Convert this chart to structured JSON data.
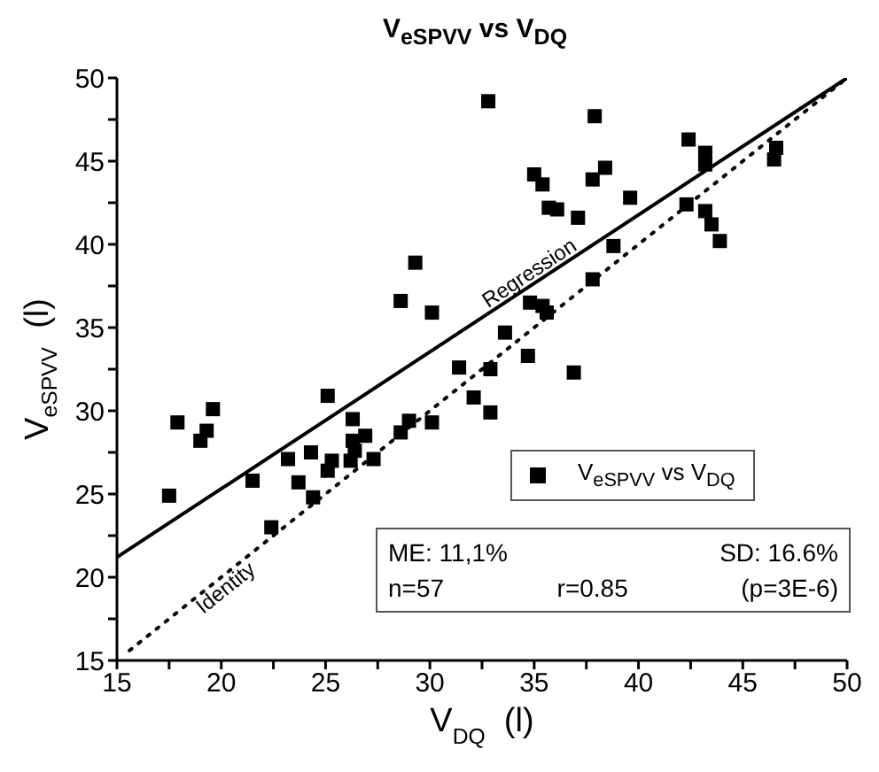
{
  "chart_data": {
    "type": "scatter",
    "title": "V$_{eSPVV}$ vs V$_{DQ}$",
    "xlabel": "V$_{DQ}$  (l)",
    "ylabel": "V$_{eSPVV}$  (l)",
    "xlim": [
      15,
      50
    ],
    "ylim": [
      15,
      50
    ],
    "xticks": [
      15,
      {
        "value": 17.5,
        "label": null
      },
      20,
      {
        "value": 22.5,
        "label": null
      },
      25,
      {
        "value": 27.5,
        "label": null
      },
      30,
      {
        "value": 32.5,
        "label": null
      },
      35,
      {
        "value": 37.5,
        "label": null
      },
      40,
      {
        "value": 42.5,
        "label": null
      },
      45,
      {
        "value": 47.5,
        "label": null
      },
      50
    ],
    "yticks": [
      15,
      {
        "value": 17.5,
        "label": null
      },
      20,
      {
        "value": 22.5,
        "label": null
      },
      25,
      {
        "value": 27.5,
        "label": null
      },
      30,
      {
        "value": 32.5,
        "label": null
      },
      35,
      {
        "value": 37.5,
        "label": null
      },
      40,
      {
        "value": 42.5,
        "label": null
      },
      45,
      {
        "value": 47.5,
        "label": null
      },
      50
    ],
    "legend": "bottom right",
    "marker": "square",
    "series": [
      {
        "name": "V$_{eSPVV}$ vs V$_{DQ}$",
        "color": "#000000",
        "x": [
          19.6,
          25.1,
          28.6,
          29.3,
          30.1,
          31.4,
          32.1,
          32.8,
          37.9,
          42.4,
          43.2,
          43.2,
          46.6,
          46.5,
          35.0,
          35.4,
          37.8,
          38.4,
          35.7,
          36.1,
          37.1,
          39.6,
          42.3,
          43.2,
          43.5,
          43.9,
          38.8,
          37.8,
          34.8,
          35.4,
          35.6,
          33.6,
          34.7,
          32.9,
          36.9,
          32.9,
          17.5,
          17.9,
          19.0,
          19.3,
          21.5,
          22.4,
          23.2,
          23.7,
          24.3,
          24.4,
          25.1,
          25.3,
          26.3,
          26.3,
          26.4,
          26.2,
          26.9,
          27.3,
          28.6,
          29.0,
          30.1
        ],
        "values": [
          30.1,
          30.9,
          36.6,
          38.9,
          35.9,
          32.6,
          30.8,
          48.6,
          47.7,
          46.3,
          45.5,
          44.8,
          45.8,
          45.1,
          44.2,
          43.6,
          43.9,
          44.6,
          42.2,
          42.1,
          41.6,
          42.8,
          42.4,
          42.0,
          41.2,
          40.2,
          39.9,
          37.9,
          36.5,
          36.3,
          35.9,
          34.7,
          33.3,
          32.5,
          32.3,
          29.9,
          24.9,
          29.3,
          28.2,
          28.8,
          25.8,
          23.0,
          27.1,
          25.7,
          27.5,
          24.8,
          26.4,
          27.0,
          29.5,
          28.2,
          27.6,
          27.0,
          28.5,
          27.1,
          28.7,
          29.4,
          29.3
        ]
      },
      {
        "name": "Regression",
        "type": "line",
        "color": "#000000",
        "line_style": "solid",
        "marker": "none",
        "x": [
          15,
          50
        ],
        "values": [
          21.2,
          50
        ]
      },
      {
        "name": "Identity",
        "type": "line",
        "color": "#000000",
        "line_style": "dotted",
        "marker": "none",
        "x": [
          15.6,
          50
        ],
        "values": [
          15.6,
          50
        ]
      }
    ],
    "annotations": [
      "ME: 11,1%",
      "SD: 16.6%",
      "n=57",
      "r=0.85",
      "(p=3E-6)"
    ]
  }
}
